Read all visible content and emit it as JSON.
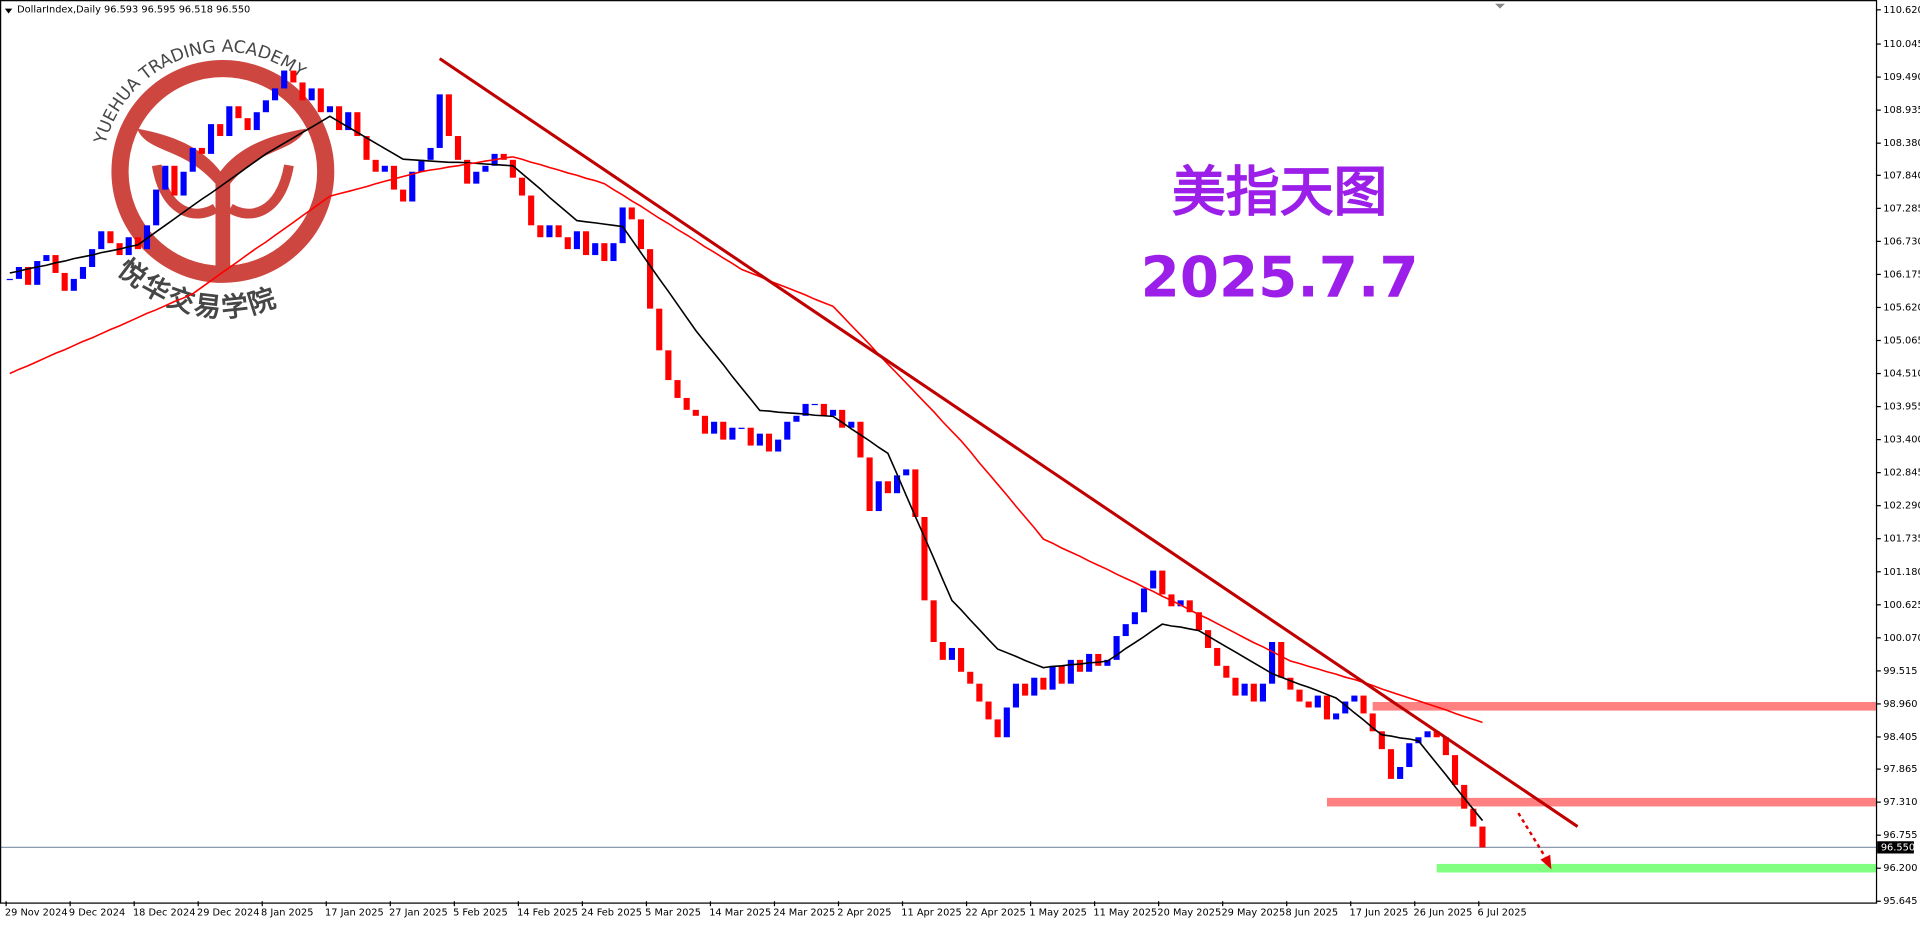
{
  "header": {
    "symbol": "DollarIndex,Daily",
    "quote": [
      96.593,
      96.595,
      96.518,
      {
        "value": 96.55,
        "label": "96.550"
      }
    ]
  },
  "watermark": {
    "text": "YUEHUA TRADING ACADEMY",
    "cn": "悦华交易学院"
  },
  "chart_data": {
    "type": "candlestick",
    "title": "美指天图",
    "subtitle": "2025.7.7",
    "categories": [
      "29 Nov 2024",
      null,
      null,
      null,
      null,
      null,
      null,
      "9 Dec 2024",
      null,
      null,
      null,
      null,
      null,
      null,
      "18 Dec 2024",
      null,
      null,
      null,
      null,
      null,
      null,
      "29 Dec 2024",
      null,
      null,
      null,
      null,
      null,
      null,
      "8 Jan 2025",
      null,
      null,
      null,
      null,
      null,
      null,
      "17 Jan 2025",
      null,
      null,
      null,
      null,
      null,
      null,
      "27 Jan 2025",
      null,
      null,
      null,
      null,
      null,
      null,
      "5 Feb 2025",
      null,
      null,
      null,
      null,
      null,
      null,
      "14 Feb 2025",
      null,
      null,
      null,
      null,
      null,
      null,
      "24 Feb 2025",
      null,
      null,
      null,
      null,
      null,
      null,
      "5 Mar 2025",
      null,
      null,
      null,
      null,
      null,
      null,
      "14 Mar 2025",
      null,
      null,
      null,
      null,
      null,
      null,
      "24 Mar 2025",
      null,
      null,
      null,
      null,
      null,
      null,
      "2 Apr 2025",
      null,
      null,
      null,
      null,
      null,
      null,
      "11 Apr 2025",
      null,
      null,
      null,
      null,
      null,
      null,
      "22 Apr 2025",
      null,
      null,
      null,
      null,
      null,
      null,
      "1 May 2025",
      null,
      null,
      null,
      null,
      null,
      null,
      "11 May 2025",
      null,
      null,
      null,
      null,
      null,
      null,
      "20 May 2025",
      null,
      null,
      null,
      null,
      null,
      null,
      "29 May 2025",
      null,
      null,
      null,
      null,
      null,
      null,
      "8 Jun 2025",
      null,
      null,
      null,
      null,
      null,
      null,
      "17 Jun 2025",
      null,
      null,
      null,
      null,
      null,
      null,
      "26 Jun 2025",
      null,
      null,
      null,
      null,
      null,
      null,
      "6 Jul 2025"
    ],
    "close": [
      106.1,
      106.3,
      106.0,
      106.4,
      106.5,
      106.2,
      105.9,
      106.1,
      106.3,
      106.6,
      106.9,
      106.7,
      106.5,
      106.8,
      106.6,
      107.0,
      107.6,
      108.0,
      107.5,
      107.9,
      108.3,
      108.2,
      108.7,
      108.5,
      109.0,
      108.8,
      108.6,
      108.9,
      109.1,
      109.3,
      109.6,
      109.4,
      109.1,
      109.3,
      108.9,
      109.0,
      108.6,
      108.9,
      108.5,
      108.1,
      107.9,
      108.0,
      107.6,
      107.4,
      107.9,
      108.1,
      108.3,
      109.2,
      108.5,
      108.1,
      107.7,
      107.9,
      108.0,
      108.2,
      108.1,
      107.8,
      107.5,
      107.0,
      106.8,
      107.0,
      106.8,
      106.6,
      106.9,
      106.5,
      106.7,
      106.4,
      106.7,
      107.3,
      107.1,
      106.6,
      105.6,
      104.9,
      104.4,
      104.1,
      103.9,
      103.8,
      103.5,
      103.7,
      103.4,
      103.6,
      103.6,
      103.3,
      103.5,
      103.2,
      103.4,
      103.7,
      103.8,
      104.0,
      104.0,
      103.8,
      103.9,
      103.6,
      103.7,
      103.1,
      102.2,
      102.7,
      102.5,
      102.8,
      102.9,
      102.1,
      100.7,
      100.0,
      99.7,
      99.9,
      99.5,
      99.3,
      99.0,
      98.7,
      98.4,
      98.9,
      99.3,
      99.1,
      99.4,
      99.2,
      99.6,
      99.3,
      99.7,
      99.5,
      99.8,
      99.6,
      99.7,
      100.1,
      100.3,
      100.5,
      100.9,
      101.2,
      100.8,
      100.6,
      100.7,
      100.5,
      100.2,
      99.9,
      99.6,
      99.4,
      99.1,
      99.3,
      99.0,
      99.3,
      100.0,
      99.4,
      99.2,
      99.0,
      98.9,
      99.1,
      98.7,
      98.8,
      99.0,
      99.1,
      98.8,
      98.5,
      98.2,
      97.7,
      97.9,
      98.3,
      98.4,
      98.5,
      98.4,
      98.1,
      97.6,
      97.2,
      96.9,
      96.55
    ],
    "up_color": "#0000ff",
    "down_color": "#ff0000",
    "series": [
      {
        "color": "#000000",
        "values": [
          106.2,
          106.23,
          106.27,
          106.3,
          106.33,
          106.37,
          106.4,
          106.44,
          106.47,
          106.5,
          106.54,
          106.57,
          106.6,
          106.64,
          106.67,
          106.78,
          106.89,
          107.0,
          107.11,
          107.22,
          107.33,
          107.44,
          107.54,
          107.65,
          107.76,
          107.87,
          107.98,
          108.09,
          108.2,
          108.29,
          108.38,
          108.47,
          108.56,
          108.65,
          108.74,
          108.83,
          108.74,
          108.65,
          108.56,
          108.47,
          108.38,
          108.29,
          108.2,
          108.11,
          108.1,
          108.09,
          108.08,
          108.07,
          108.06,
          108.06,
          108.05,
          108.04,
          108.03,
          108.02,
          108.01,
          108.0,
          107.87,
          107.74,
          107.61,
          107.47,
          107.34,
          107.21,
          107.08,
          107.06,
          107.04,
          107.02,
          107.0,
          106.98,
          106.76,
          106.54,
          106.32,
          106.1,
          105.89,
          105.67,
          105.45,
          105.23,
          105.04,
          104.85,
          104.66,
          104.46,
          104.27,
          104.08,
          103.89,
          103.88,
          103.86,
          103.85,
          103.84,
          103.83,
          103.81,
          103.8,
          103.79,
          103.69,
          103.58,
          103.48,
          103.38,
          103.27,
          103.17,
          102.82,
          102.46,
          102.11,
          101.76,
          101.41,
          101.05,
          100.7,
          100.54,
          100.37,
          100.21,
          100.04,
          99.88,
          99.82,
          99.76,
          99.69,
          99.63,
          99.57,
          99.59,
          99.6,
          99.62,
          99.63,
          99.65,
          99.66,
          99.68,
          99.78,
          99.89,
          99.99,
          100.09,
          100.2,
          100.3,
          100.27,
          100.25,
          100.22,
          100.19,
          100.1,
          100.01,
          99.92,
          99.83,
          99.74,
          99.65,
          99.56,
          99.47,
          99.41,
          99.35,
          99.29,
          99.24,
          99.18,
          99.12,
          99.06,
          98.94,
          98.81,
          98.69,
          98.56,
          98.44,
          98.42,
          98.39,
          98.37,
          98.34,
          98.15,
          97.96,
          97.77,
          97.57,
          97.38,
          97.19,
          97.0
        ]
      },
      {
        "color": "#ff0000",
        "values": [
          104.51,
          104.58,
          104.64,
          104.71,
          104.78,
          104.85,
          104.91,
          104.98,
          105.05,
          105.11,
          105.18,
          105.25,
          105.31,
          105.38,
          105.45,
          105.52,
          105.58,
          105.65,
          105.72,
          105.78,
          105.85,
          105.96,
          106.07,
          106.18,
          106.29,
          106.4,
          106.51,
          106.62,
          106.72,
          106.83,
          106.94,
          107.05,
          107.16,
          107.27,
          107.38,
          107.49,
          107.53,
          107.57,
          107.61,
          107.65,
          107.7,
          107.74,
          107.78,
          107.82,
          107.86,
          107.9,
          107.93,
          107.95,
          107.98,
          108.0,
          108.03,
          108.05,
          108.08,
          108.1,
          108.13,
          108.15,
          108.11,
          108.06,
          108.02,
          107.97,
          107.93,
          107.88,
          107.84,
          107.79,
          107.75,
          107.7,
          107.6,
          107.51,
          107.41,
          107.32,
          107.22,
          107.12,
          107.03,
          106.93,
          106.84,
          106.74,
          106.64,
          106.55,
          106.45,
          106.36,
          106.26,
          106.2,
          106.14,
          106.07,
          106.01,
          105.95,
          105.89,
          105.83,
          105.76,
          105.7,
          105.64,
          105.48,
          105.32,
          105.16,
          105.0,
          104.83,
          104.67,
          104.51,
          104.35,
          104.19,
          104.03,
          103.87,
          103.7,
          103.54,
          103.38,
          103.2,
          103.01,
          102.83,
          102.65,
          102.47,
          102.28,
          102.1,
          101.92,
          101.73,
          101.66,
          101.58,
          101.51,
          101.44,
          101.36,
          101.29,
          101.22,
          101.14,
          101.07,
          101.0,
          100.92,
          100.85,
          100.77,
          100.7,
          100.62,
          100.54,
          100.46,
          100.39,
          100.31,
          100.23,
          100.15,
          100.07,
          99.99,
          99.92,
          99.84,
          99.76,
          99.68,
          99.64,
          99.59,
          99.55,
          99.5,
          99.46,
          99.41,
          99.37,
          99.32,
          99.27,
          99.21,
          99.16,
          99.11,
          99.06,
          99.01,
          98.96,
          98.91,
          98.86,
          98.8,
          98.75,
          98.7,
          98.65
        ]
      }
    ],
    "trendline": {
      "x": [
        47,
        171.4
      ],
      "values": [
        109.8,
        96.9
      ],
      "color": "#c00000"
    },
    "zones": [
      {
        "x": 149,
        "value": 98.92,
        "color": "#ff8080"
      },
      {
        "x": 144,
        "value": 97.31,
        "color": "#ff8080"
      },
      {
        "x": 156,
        "value": 96.2,
        "color": "#80ff80"
      }
    ],
    "ylim": [
      95.645,
      110.62
    ],
    "yticks": [
      {
        "value": 110.62,
        "label": "110.620"
      },
      110.045,
      {
        "value": 109.49,
        "label": "109.490"
      },
      108.935,
      {
        "value": 108.38,
        "label": "108.380"
      },
      {
        "value": 107.84,
        "label": "107.840"
      },
      107.285,
      {
        "value": 106.73,
        "label": "106.730"
      },
      106.175,
      {
        "value": 105.62,
        "label": "105.620"
      },
      105.065,
      {
        "value": 104.51,
        "label": "104.510"
      },
      103.955,
      {
        "value": 103.4,
        "label": "103.400"
      },
      102.845,
      {
        "value": 102.29,
        "label": "102.290"
      },
      101.735,
      {
        "value": 101.18,
        "label": "101.180"
      },
      100.625,
      {
        "value": 100.07,
        "label": "100.070"
      },
      99.515,
      {
        "value": 98.96,
        "label": "98.960"
      },
      98.405,
      97.865,
      {
        "value": 97.31,
        "label": "97.310"
      },
      96.755,
      {
        "value": 96.2,
        "label": "96.200"
      },
      95.645
    ],
    "last_price": {
      "value": 96.55,
      "label": "96.550"
    },
    "title_color": "#9b1fe8"
  }
}
